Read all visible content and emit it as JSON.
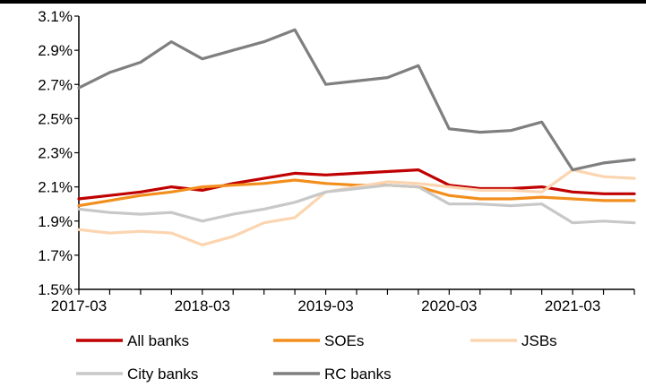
{
  "chart_data": {
    "type": "line",
    "title": "",
    "xlabel": "",
    "ylabel": "",
    "ylim": [
      1.5,
      3.1
    ],
    "y_ticks": [
      "1.5%",
      "1.7%",
      "1.9%",
      "2.1%",
      "2.3%",
      "2.5%",
      "2.7%",
      "2.9%",
      "3.1%"
    ],
    "y_tick_values": [
      1.5,
      1.7,
      1.9,
      2.1,
      2.3,
      2.5,
      2.7,
      2.9,
      3.1
    ],
    "x_categories": [
      "2017-03",
      "2017-06",
      "2017-09",
      "2017-12",
      "2018-03",
      "2018-06",
      "2018-09",
      "2018-12",
      "2019-03",
      "2019-06",
      "2019-09",
      "2019-12",
      "2020-03",
      "2020-06",
      "2020-09",
      "2020-12",
      "2021-03",
      "2021-06",
      "2021-09"
    ],
    "x_tick_labels": [
      "2017-03",
      "2018-03",
      "2019-03",
      "2020-03",
      "2021-03"
    ],
    "x_tick_indices": [
      0,
      4,
      8,
      12,
      16
    ],
    "grid": false,
    "legend_position": "bottom",
    "series": [
      {
        "name": "All banks",
        "color": "#c00000",
        "values": [
          2.03,
          2.05,
          2.07,
          2.1,
          2.08,
          2.12,
          2.15,
          2.18,
          2.17,
          2.18,
          2.19,
          2.2,
          2.11,
          2.09,
          2.09,
          2.1,
          2.07,
          2.06,
          2.06
        ]
      },
      {
        "name": "SOEs",
        "color": "#f28e1c",
        "values": [
          1.99,
          2.02,
          2.05,
          2.07,
          2.1,
          2.11,
          2.12,
          2.14,
          2.12,
          2.11,
          2.11,
          2.1,
          2.05,
          2.03,
          2.03,
          2.04,
          2.03,
          2.02,
          2.02
        ]
      },
      {
        "name": "JSBs",
        "color": "#fcd5b0",
        "values": [
          1.85,
          1.83,
          1.84,
          1.83,
          1.76,
          1.81,
          1.89,
          1.92,
          2.07,
          2.1,
          2.13,
          2.12,
          2.1,
          2.08,
          2.08,
          2.07,
          2.2,
          2.16,
          2.15
        ]
      },
      {
        "name": "City banks",
        "color": "#c8c8c8",
        "values": [
          1.97,
          1.95,
          1.94,
          1.95,
          1.9,
          1.94,
          1.97,
          2.01,
          2.07,
          2.09,
          2.11,
          2.1,
          2.0,
          2.0,
          1.99,
          2.0,
          1.89,
          1.9,
          1.89
        ]
      },
      {
        "name": "RC banks",
        "color": "#7f7f7f",
        "values": [
          2.68,
          2.77,
          2.83,
          2.95,
          2.85,
          2.9,
          2.95,
          3.02,
          2.7,
          2.72,
          2.74,
          2.81,
          2.44,
          2.42,
          2.43,
          2.48,
          2.2,
          2.24,
          2.26
        ]
      }
    ]
  }
}
